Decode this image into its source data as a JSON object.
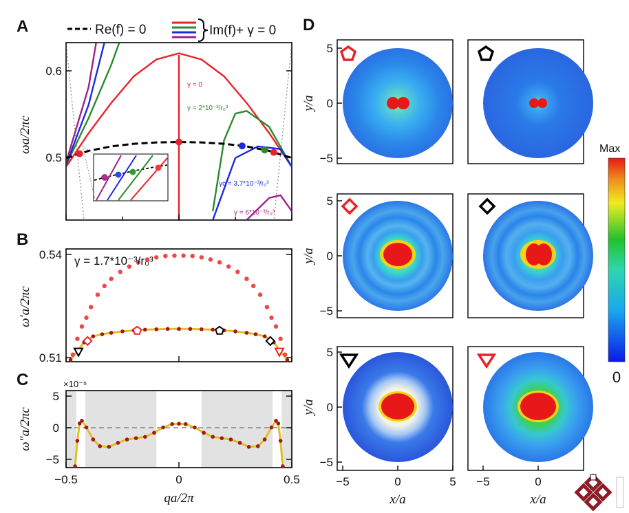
{
  "panels": {
    "A": {
      "letter": "A",
      "ylabel": "ωa/2πc",
      "yticks": [
        "0.6",
        "0.5"
      ],
      "legend_re": "Re(f) = 0",
      "legend_im": "Im(f)+ γ = 0",
      "annotations": {
        "g0": "γ = 0",
        "g2": "γ = 2*10⁻³/r₀³",
        "gc": "γc = 3.7*10⁻³/r₀³",
        "g6": "γ = 6*10⁻³/r₀³"
      }
    },
    "B": {
      "letter": "B",
      "ylabel": "ω'a/2πc",
      "yticks": [
        "0.54",
        "0.51"
      ],
      "gamma_label": "γ = 1.7*10⁻³/r₀³"
    },
    "C": {
      "letter": "C",
      "ylabel": "ω\"a/2πc",
      "scale_label": "×10⁻⁵",
      "yticks": [
        "5",
        "0",
        "−5"
      ],
      "xticks": [
        "−0.5",
        "0",
        "0.5"
      ],
      "xlabel": "qa/2π"
    },
    "D": {
      "letter": "D",
      "ylabel": "y/a",
      "xlabel": "x/a",
      "yticks": [
        "5",
        "0",
        "−5"
      ],
      "xticks": [
        "−5",
        "0",
        "5"
      ],
      "colorbar_max": "Max",
      "colorbar_min": "0"
    }
  },
  "chart_data": [
    {
      "type": "line",
      "panel": "A",
      "ylabel": "ωa/2πc",
      "xlim": [
        -0.5,
        0.5
      ],
      "ylim": [
        0.43,
        0.63
      ],
      "series": [
        {
          "name": "Re(f) = 0",
          "style": "dashed",
          "color": "#000000",
          "x": [
            -0.5,
            -0.4,
            -0.3,
            -0.2,
            -0.1,
            0,
            0.1,
            0.2,
            0.3,
            0.4,
            0.5
          ],
          "y": [
            0.5,
            0.508,
            0.513,
            0.516,
            0.5175,
            0.518,
            0.5175,
            0.516,
            0.513,
            0.508,
            0.5
          ]
        },
        {
          "name": "γ = 0",
          "color": "#e8222a",
          "x": [
            -0.5,
            -0.4,
            -0.3,
            -0.2,
            -0.1,
            0,
            0.1,
            0.2,
            0.3,
            0.4,
            0.5
          ],
          "y": [
            0.49,
            0.528,
            0.562,
            0.592,
            0.611,
            0.618,
            0.611,
            0.592,
            0.562,
            0.528,
            0.49
          ]
        },
        {
          "name": "γ = 2*10⁻³/r₀³",
          "color": "#2a8a2a",
          "x": [
            -0.5,
            -0.4,
            -0.3,
            -0.25,
            0.15,
            0.2,
            0.25,
            0.3,
            0.4,
            0.5
          ],
          "y": [
            0.492,
            0.545,
            0.605,
            0.64,
            0.44,
            0.52,
            0.55,
            0.553,
            0.535,
            0.49
          ]
        },
        {
          "name": "γc = 3.7*10⁻³/r₀³",
          "color": "#1a2ae0",
          "x": [
            -0.5,
            -0.4,
            -0.32,
            0.15,
            0.25,
            0.35,
            0.45,
            0.5
          ],
          "y": [
            0.492,
            0.56,
            0.64,
            0.43,
            0.5,
            0.513,
            0.51,
            0.49
          ]
        },
        {
          "name": "γ = 6*10⁻³/r₀³",
          "color": "#a0208a",
          "x": [
            -0.5,
            -0.4,
            -0.36,
            0.3,
            0.4,
            0.45,
            0.5
          ],
          "y": [
            0.495,
            0.58,
            0.64,
            0.43,
            0.455,
            0.458,
            0.44
          ]
        }
      ],
      "markers_x": [
        -0.44,
        0,
        0.28,
        0.38,
        0.42
      ]
    },
    {
      "type": "scatter",
      "panel": "B",
      "title": "γ = 1.7*10⁻³/r₀³",
      "ylabel": "ω'a/2πc",
      "xlim": [
        -0.5,
        0.5
      ],
      "ylim": [
        0.509,
        0.541
      ],
      "series": [
        {
          "name": "upper branch",
          "color": "#f04646",
          "x": [
            -0.47,
            -0.45,
            -0.43,
            -0.41,
            -0.39,
            -0.36,
            -0.33,
            -0.3,
            -0.26,
            -0.22,
            -0.18,
            -0.14,
            -0.1,
            -0.06,
            -0.02,
            0.02,
            0.06,
            0.1,
            0.14,
            0.18,
            0.22,
            0.26,
            0.3,
            0.33,
            0.36,
            0.39,
            0.41,
            0.43,
            0.45,
            0.47
          ],
          "y": [
            0.511,
            0.5155,
            0.519,
            0.5215,
            0.5245,
            0.528,
            0.5305,
            0.5325,
            0.5345,
            0.536,
            0.5372,
            0.538,
            0.5386,
            0.539,
            0.5391,
            0.5391,
            0.539,
            0.5386,
            0.538,
            0.5372,
            0.536,
            0.5345,
            0.5325,
            0.5305,
            0.528,
            0.5245,
            0.5215,
            0.519,
            0.5155,
            0.511
          ]
        },
        {
          "name": "lower branch",
          "color": "#a01818",
          "x": [
            -0.48,
            -0.45,
            -0.42,
            -0.38,
            -0.34,
            -0.3,
            -0.25,
            -0.2,
            -0.15,
            -0.1,
            -0.05,
            0,
            0.05,
            0.1,
            0.15,
            0.2,
            0.25,
            0.3,
            0.34,
            0.38,
            0.42,
            0.45,
            0.48
          ],
          "y": [
            0.5095,
            0.512,
            0.5145,
            0.5162,
            0.5168,
            0.5172,
            0.5176,
            0.5179,
            0.5181,
            0.5182,
            0.5183,
            0.5183,
            0.5183,
            0.5182,
            0.5181,
            0.5179,
            0.5176,
            0.5172,
            0.5168,
            0.5162,
            0.5145,
            0.512,
            0.5095
          ]
        }
      ],
      "open_markers": [
        {
          "shape": "triangle",
          "color": "#000000",
          "x": -0.445,
          "y": 0.5118
        },
        {
          "shape": "diamond",
          "color": "#e8222a",
          "x": -0.405,
          "y": 0.5149
        },
        {
          "shape": "pentagon",
          "color": "#e8222a",
          "x": -0.185,
          "y": 0.5178
        },
        {
          "shape": "pentagon",
          "color": "#000000",
          "x": 0.18,
          "y": 0.5178
        },
        {
          "shape": "diamond",
          "color": "#000000",
          "x": 0.405,
          "y": 0.5149
        },
        {
          "shape": "triangle",
          "color": "#e8222a",
          "x": 0.445,
          "y": 0.5118
        }
      ]
    },
    {
      "type": "line",
      "panel": "C",
      "xlabel": "qa/2π",
      "ylabel": "ω\"a/2πc",
      "xlim": [
        -0.5,
        0.5
      ],
      "ylim": [
        -6,
        5.5
      ],
      "series": [
        {
          "name": "ω\" curve",
          "color": "#e0c020",
          "x": [
            -0.46,
            -0.45,
            -0.44,
            -0.43,
            -0.41,
            -0.38,
            -0.35,
            -0.31,
            -0.27,
            -0.23,
            -0.19,
            -0.15,
            -0.11,
            -0.07,
            -0.03,
            0,
            0.03,
            0.07,
            0.11,
            0.15,
            0.19,
            0.23,
            0.27,
            0.31,
            0.35,
            0.38,
            0.41,
            0.43,
            0.44,
            0.45,
            0.46
          ],
          "y": [
            -5.8,
            -2,
            0.6,
            1,
            0,
            -1.8,
            -2.8,
            -2.9,
            -2.3,
            -1.8,
            -1.6,
            -1.4,
            -0.8,
            0,
            0.5,
            0.55,
            0.5,
            0,
            -0.8,
            -1.4,
            -1.6,
            -1.8,
            -2.3,
            -2.9,
            -2.8,
            -1.8,
            0,
            1,
            0.6,
            -2,
            -5.8
          ]
        }
      ],
      "shaded_x_ranges": [
        [
          -0.5,
          -0.455
        ],
        [
          -0.415,
          -0.1
        ],
        [
          0.1,
          0.415
        ],
        [
          0.455,
          0.5
        ]
      ]
    },
    {
      "type": "heatmap",
      "panel": "D",
      "xlabel": "x/a",
      "ylabel": "y/a",
      "xlim": [
        -5.5,
        5.5
      ],
      "ylim": [
        -5.5,
        5.5
      ],
      "colorbar": [
        "Max",
        "0"
      ],
      "maps": [
        {
          "marker": "pentagon",
          "color": "#e8222a",
          "core": "two-lobe",
          "halo": "medium"
        },
        {
          "marker": "pentagon",
          "color": "#000000",
          "core": "two-lobe small",
          "halo": "weak"
        },
        {
          "marker": "diamond",
          "color": "#e8222a",
          "core": "oval",
          "halo": "ringed"
        },
        {
          "marker": "diamond",
          "color": "#000000",
          "core": "oval two-lobe",
          "halo": "ringed"
        },
        {
          "marker": "triangle",
          "color": "#000000",
          "core": "large oval",
          "halo": "pale"
        },
        {
          "marker": "triangle",
          "color": "#e8222a",
          "core": "large oval",
          "halo": "wide"
        }
      ]
    }
  ]
}
